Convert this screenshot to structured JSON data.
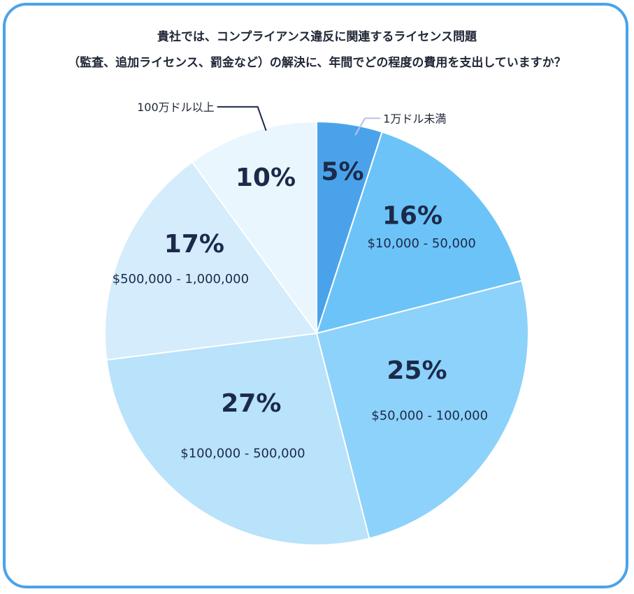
{
  "title_line1": "貴社では、コンプライアンス違反に関連するライセンス問題",
  "title_line2": "（監査、追加ライセンス、罰金など）の解決に、年間でどの程度の費用を支出していますか？",
  "colors": {
    "frame": "#4aa3ea"
  },
  "chart_data": {
    "type": "pie",
    "title": "貴社では、コンプライアンス違反に関連するライセンス問題（監査、追加ライセンス、罰金など）の解決に、年間でどの程度の費用を支出していますか？",
    "start_angle": "12 o'clock",
    "direction": "clockwise",
    "slices": [
      {
        "label": "1万ドル未満",
        "value": 5,
        "pct_label": "5%",
        "color": "#4aa3ea",
        "label_style": "callout"
      },
      {
        "label": "$10,000 - 50,000",
        "value": 16,
        "pct_label": "16%",
        "color": "#6cc3f8",
        "label_style": "inside"
      },
      {
        "label": "$50,000 - 100,000",
        "value": 25,
        "pct_label": "25%",
        "color": "#8dd2fa",
        "label_style": "inside"
      },
      {
        "label": "$100,000 - 500,000",
        "value": 27,
        "pct_label": "27%",
        "color": "#b9e2fb",
        "label_style": "inside"
      },
      {
        "label": "$500,000 - 1,000,000",
        "value": 17,
        "pct_label": "17%",
        "color": "#d4ecfc",
        "label_style": "inside"
      },
      {
        "label": "100万ドル以上",
        "value": 10,
        "pct_label": "10%",
        "color": "#eaf6fe",
        "label_style": "callout"
      }
    ]
  }
}
